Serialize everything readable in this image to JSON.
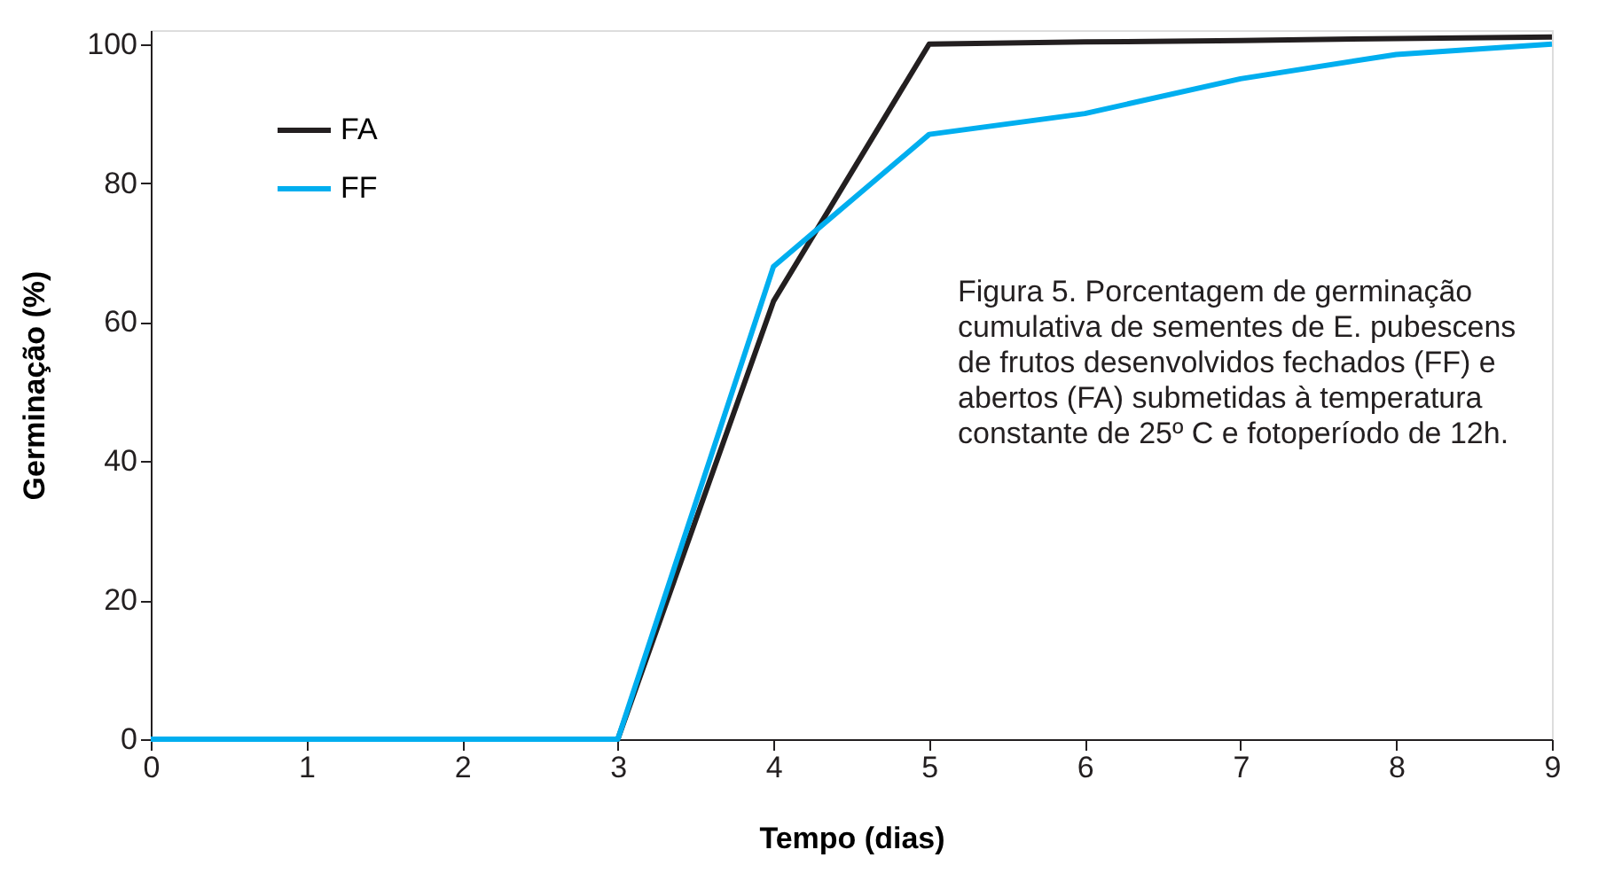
{
  "chart_data": {
    "type": "line",
    "xlabel": "Tempo (dias)",
    "ylabel": "Germinação (%)",
    "x": [
      0,
      1,
      2,
      3,
      4,
      5,
      6,
      7,
      8,
      9
    ],
    "series": [
      {
        "name": "FA",
        "color": "#231f20",
        "values": [
          0,
          0,
          0,
          0,
          63,
          100,
          100.3,
          100.5,
          100.8,
          101
        ]
      },
      {
        "name": "FF",
        "color": "#00aeef",
        "values": [
          0,
          0,
          0,
          0,
          68,
          87,
          90,
          95,
          98.5,
          100
        ]
      }
    ],
    "xlim": [
      0,
      9
    ],
    "xticks": [
      0,
      1,
      2,
      3,
      4,
      5,
      6,
      7,
      8,
      9
    ],
    "ylim": [
      0,
      102
    ],
    "yticks": [
      0,
      20,
      40,
      60,
      80,
      100
    ],
    "grid": false,
    "legend": "top left",
    "marker": "none",
    "line_style": "solid",
    "annotations": [
      "Figura 5. Porcentagem de germinação cumulativa de sementes de E. pubescens de frutos desenvolvidos fechados (FF) e abertos (FA) submetidas à temperatura constante de 25º C e fotoperíodo de 12h."
    ]
  }
}
